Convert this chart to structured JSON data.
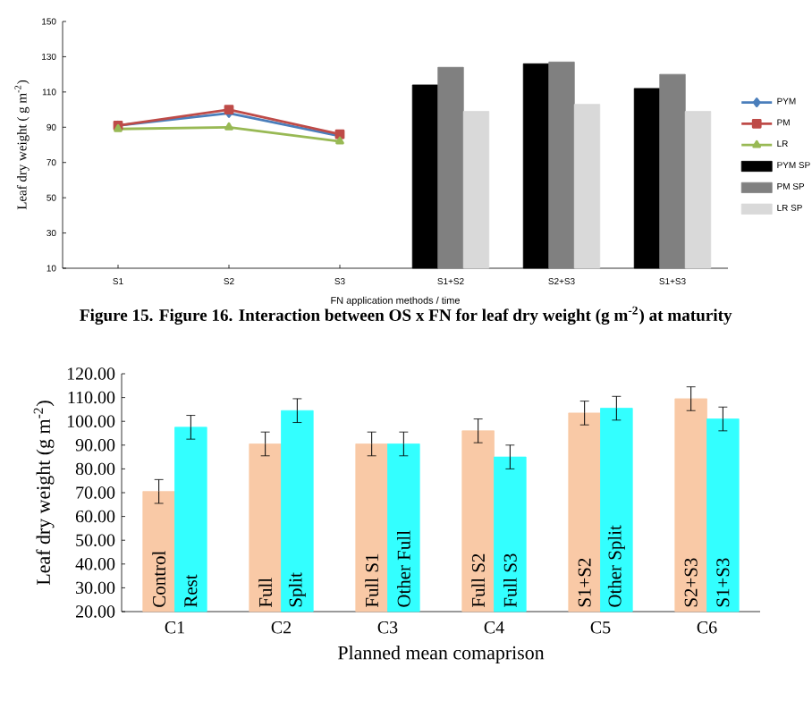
{
  "chart_data": [
    {
      "type": "line",
      "xlabel": "FN application methods / time",
      "ylabel": "Leaf dry weight ( g m$^{-2}$)",
      "categories": [
        "S1",
        "S2",
        "S3",
        "S1+S2",
        "S2+S3",
        "S1+S3"
      ],
      "ylim": [
        10,
        150
      ],
      "yticks": [
        10,
        30,
        50,
        70,
        90,
        110,
        130,
        150
      ],
      "legend": "right",
      "series": [
        {
          "name": "PYM",
          "type": "line",
          "marker": "diamond",
          "color": "#4a7ebb",
          "values": [
            91,
            98,
            85,
            null,
            null,
            null
          ]
        },
        {
          "name": "PM",
          "type": "line",
          "marker": "square",
          "color": "#be4b48",
          "values": [
            91,
            100,
            86,
            null,
            null,
            null
          ]
        },
        {
          "name": "LR",
          "type": "line",
          "marker": "triangle",
          "color": "#98b954",
          "values": [
            89,
            90,
            82,
            null,
            null,
            null
          ]
        },
        {
          "name": "PYM SP",
          "type": "bar",
          "color": "#000000",
          "values": [
            null,
            null,
            null,
            114,
            126,
            112
          ]
        },
        {
          "name": "PM SP",
          "type": "bar",
          "color": "#808080",
          "values": [
            null,
            null,
            null,
            124,
            127,
            120
          ]
        },
        {
          "name": "LR SP",
          "type": "bar",
          "color": "#d9d9d9",
          "values": [
            null,
            null,
            null,
            99,
            103,
            99
          ]
        }
      ]
    },
    {
      "type": "bar",
      "title": "Figure 15. Figure 16. Interaction between OS x FN for leaf dry weight (g m$^{-2}$) at maturity",
      "xlabel": "Planned mean comaprison",
      "ylabel": "Leaf dry weight (g m$^{-2}$)",
      "categories": [
        "C1",
        "C2",
        "C3",
        "C4",
        "C5",
        "C6"
      ],
      "ylim": [
        20,
        120
      ],
      "yticks": [
        {
          "value": 20,
          "label": "20.00"
        },
        {
          "value": 30,
          "label": "30.00"
        },
        {
          "value": 40,
          "label": "40.00"
        },
        {
          "value": 50,
          "label": "50.00"
        },
        {
          "value": 60,
          "label": "60.00"
        },
        {
          "value": 70,
          "label": "70.00"
        },
        {
          "value": 80,
          "label": "80.00"
        },
        {
          "value": 90,
          "label": "90.00"
        },
        {
          "value": 100,
          "label": "100.00"
        },
        {
          "value": 110,
          "label": "110.00"
        },
        {
          "value": 120,
          "label": "120.00"
        }
      ],
      "series": [
        {
          "color": "#f9c9a6",
          "values": [
            70.5,
            90.5,
            90.5,
            96,
            103.5,
            109.5
          ],
          "errors": [
            5,
            5,
            5,
            5,
            5,
            5
          ],
          "value_labels": [
            "Control",
            "Full",
            "Full  S1",
            "Full S2",
            "S1+S2",
            "S2+S3"
          ]
        },
        {
          "color": "#33ffff",
          "values": [
            97.5,
            104.5,
            90.5,
            85,
            105.5,
            101
          ],
          "errors": [
            5,
            5,
            5,
            5,
            5,
            5
          ],
          "value_labels": [
            "Rest",
            "Split",
            "Other Full",
            "Full S3",
            "Other Split",
            "S1+S3"
          ]
        }
      ]
    }
  ]
}
